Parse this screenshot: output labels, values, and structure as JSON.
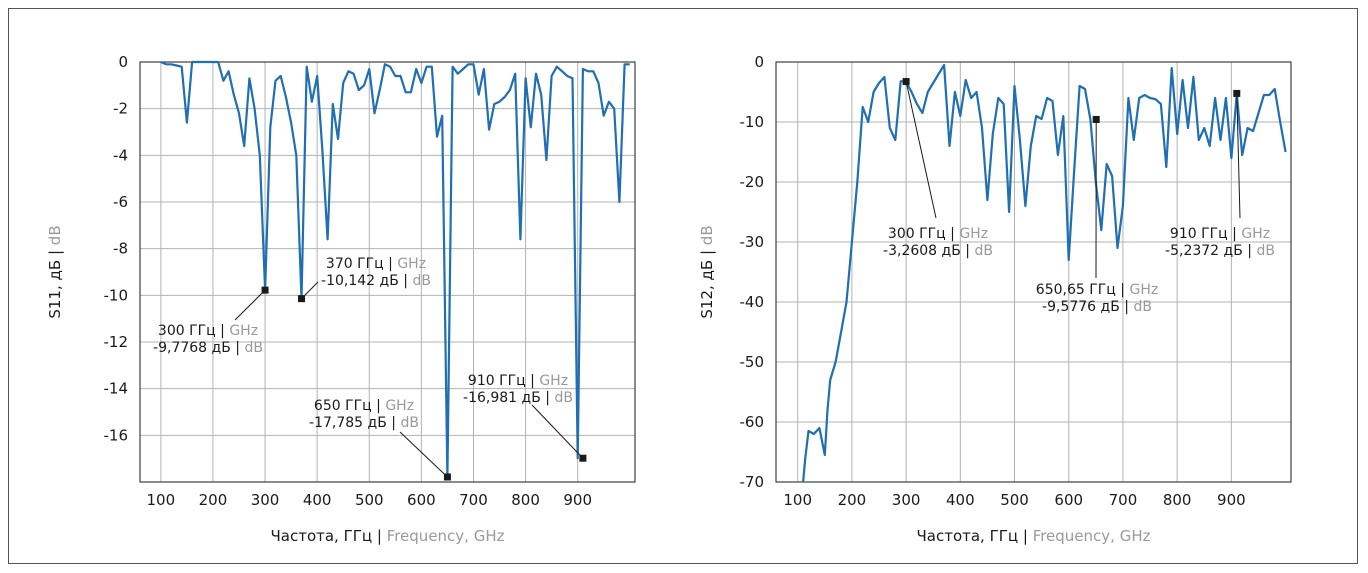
{
  "chart_data": [
    {
      "type": "line",
      "xlabel": {
        "ru": "Частота, ГГц",
        "sep": " | ",
        "en": "Frequency, GHz"
      },
      "ylabel": {
        "ru": "S11, дБ",
        "sep": " | ",
        "en": "dB"
      },
      "xlim": [
        60,
        1010
      ],
      "ylim": [
        -18,
        0
      ],
      "xticks": [
        100,
        200,
        300,
        400,
        500,
        600,
        700,
        800,
        900
      ],
      "yticks": [
        0,
        -2,
        -4,
        -6,
        -8,
        -10,
        -12,
        -14,
        -16
      ],
      "grid": true,
      "series": [
        {
          "color": "#1f6fb2",
          "x": [
            100,
            110,
            120,
            130,
            140,
            150,
            160,
            170,
            180,
            190,
            200,
            210,
            220,
            230,
            240,
            250,
            260,
            270,
            280,
            290,
            300,
            310,
            320,
            330,
            340,
            350,
            360,
            370,
            380,
            390,
            400,
            410,
            420,
            430,
            440,
            450,
            460,
            470,
            480,
            490,
            500,
            510,
            520,
            530,
            540,
            550,
            560,
            570,
            580,
            590,
            600,
            610,
            620,
            630,
            640,
            650,
            660,
            670,
            680,
            690,
            700,
            710,
            720,
            730,
            740,
            750,
            760,
            770,
            780,
            790,
            800,
            810,
            820,
            830,
            840,
            850,
            860,
            870,
            880,
            890,
            900,
            910,
            920,
            930,
            940,
            950,
            960,
            970,
            980,
            990,
            1000
          ],
          "y": [
            0,
            -0.1,
            -0.1,
            -0.15,
            -0.2,
            -2.6,
            0,
            0,
            0,
            0,
            0,
            0,
            -0.8,
            -0.4,
            -1.4,
            -2.2,
            -3.6,
            -0.7,
            -2,
            -4,
            -9.78,
            -2.8,
            -0.8,
            -0.6,
            -1.5,
            -2.6,
            -4,
            -10.14,
            -0.2,
            -1.7,
            -0.6,
            -3.8,
            -7.6,
            -1.8,
            -3.3,
            -0.9,
            -0.4,
            -0.5,
            -1.2,
            -1.0,
            -0.3,
            -2.2,
            -1.2,
            -0.1,
            -0.2,
            -0.6,
            -0.6,
            -1.3,
            -1.3,
            -0.3,
            -0.9,
            -0.2,
            -0.2,
            -3.2,
            -2.3,
            -17.785,
            -0.2,
            -0.5,
            -0.3,
            -0.1,
            -0.1,
            -1.4,
            -0.3,
            -2.9,
            -1.8,
            -1.7,
            -1.5,
            -1.2,
            -0.5,
            -7.6,
            -0.7,
            -2.8,
            -0.5,
            -1.4,
            -4.2,
            -0.6,
            -0.2,
            -0.4,
            -0.6,
            -0.7,
            -16.981,
            -0.3,
            -0.4,
            -0.4,
            -0.9,
            -2.3,
            -1.7,
            -2,
            -6.0,
            -0.1,
            -0.1
          ]
        }
      ],
      "markers": [
        {
          "x": 300,
          "y": -9.7768,
          "label": {
            "ru1": "300 ГГц",
            "en1": "GHz",
            "ru2": "-9,7768 дБ",
            "en2": "dB"
          }
        },
        {
          "x": 370,
          "y": -10.142,
          "label": {
            "ru1": "370 ГГц",
            "en1": "GHz",
            "ru2": "-10,142 дБ",
            "en2": "dB"
          }
        },
        {
          "x": 650,
          "y": -17.785,
          "label": {
            "ru1": "650 ГГц",
            "en1": "GHz",
            "ru2": "-17,785 дБ",
            "en2": "dB"
          }
        },
        {
          "x": 910,
          "y": -16.981,
          "label": {
            "ru1": "910 ГГц",
            "en1": "GHz",
            "ru2": "-16,981 дБ",
            "en2": "dB"
          }
        }
      ]
    },
    {
      "type": "line",
      "xlabel": {
        "ru": "Частота, ГГц",
        "sep": " | ",
        "en": "Frequency, GHz"
      },
      "ylabel": {
        "ru": "S12, дБ",
        "sep": " | ",
        "en": "dB"
      },
      "xlim": [
        60,
        1010
      ],
      "ylim": [
        -70,
        0
      ],
      "xticks": [
        100,
        200,
        300,
        400,
        500,
        600,
        700,
        800,
        900
      ],
      "yticks": [
        0,
        -10,
        -20,
        -30,
        -40,
        -50,
        -60,
        -70
      ],
      "grid": true,
      "series": [
        {
          "color": "#1f6fb2",
          "x": [
            110,
            114,
            120,
            130,
            140,
            150,
            155,
            160,
            170,
            180,
            190,
            200,
            210,
            220,
            230,
            240,
            250,
            260,
            270,
            280,
            290,
            300,
            310,
            320,
            330,
            340,
            350,
            360,
            370,
            380,
            390,
            400,
            410,
            420,
            430,
            440,
            450,
            460,
            470,
            480,
            490,
            500,
            510,
            520,
            530,
            540,
            550,
            560,
            570,
            580,
            590,
            600,
            610,
            620,
            630,
            640,
            650,
            660,
            670,
            680,
            690,
            700,
            710,
            720,
            730,
            740,
            750,
            760,
            770,
            780,
            790,
            800,
            810,
            820,
            830,
            840,
            850,
            860,
            870,
            880,
            890,
            900,
            910,
            920,
            930,
            940,
            950,
            960,
            970,
            980,
            990,
            1000
          ],
          "y": [
            -70,
            -66,
            -61.5,
            -62,
            -61,
            -65.5,
            -58,
            -53,
            -50,
            -45,
            -40,
            -30,
            -20,
            -7.5,
            -10,
            -5,
            -3.5,
            -2.5,
            -11,
            -13,
            -3.2,
            -3.26,
            -5,
            -7,
            -8.5,
            -5,
            -3.5,
            -2,
            -0.5,
            -14,
            -5,
            -9,
            -3,
            -6,
            -5,
            -11,
            -23,
            -12,
            -6,
            -7,
            -25,
            -4,
            -13,
            -24,
            -14,
            -9,
            -9.5,
            -6,
            -6.5,
            -15.5,
            -9,
            -33,
            -18,
            -4,
            -4.5,
            -9.58,
            -20,
            -28,
            -17,
            -19,
            -31,
            -24,
            -6,
            -13,
            -6,
            -5.5,
            -6,
            -6.2,
            -7,
            -17.5,
            -1,
            -12,
            -3,
            -11,
            -2.5,
            -13,
            -11,
            -14,
            -6,
            -13,
            -6,
            -16,
            -5.24,
            -15.5,
            -11,
            -11.5,
            -8.5,
            -5.5,
            -5.5,
            -4.5,
            -10,
            -15
          ]
        }
      ],
      "markers": [
        {
          "x": 300,
          "y": -3.2608,
          "label": {
            "ru1": "300 ГГц",
            "en1": "GHz",
            "ru2": "-3,2608 дБ",
            "en2": "dB"
          }
        },
        {
          "x": 650.65,
          "y": -9.5776,
          "label": {
            "ru1": "650,65 ГГц",
            "en1": "GHz",
            "ru2": "-9,5776 дБ",
            "en2": "dB"
          }
        },
        {
          "x": 910,
          "y": -5.2372,
          "label": {
            "ru1": "910 ГГц",
            "en1": "GHz",
            "ru2": "-5,2372 дБ",
            "en2": "dB"
          }
        }
      ]
    }
  ]
}
